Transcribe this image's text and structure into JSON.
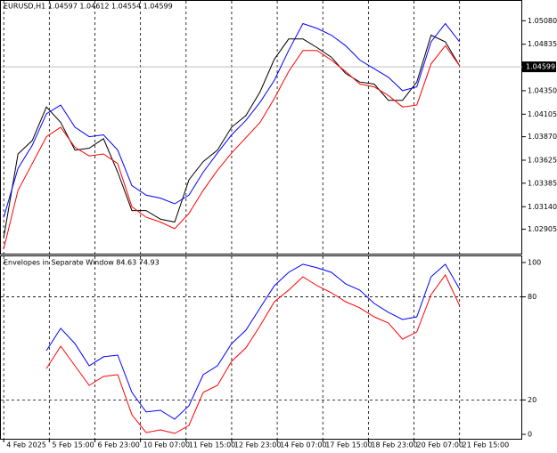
{
  "chart_data": [
    {
      "type": "line",
      "title": "EURUSD,H1  1.04597 1.04612 1.04554 1.04599",
      "x": [
        0,
        10,
        20,
        30,
        40,
        50,
        60,
        70,
        80,
        90,
        100,
        110,
        120,
        130,
        140,
        150,
        160,
        170,
        180,
        190,
        200,
        210,
        220,
        230,
        240,
        250,
        260,
        270,
        280,
        290,
        300,
        310,
        320
      ],
      "xlim": [
        -2,
        364
      ],
      "ylim": [
        1.02641,
        1.05287
      ],
      "yticks": [
        {
          "value": 1.0508,
          "label": "1.05080"
        },
        {
          "value": 1.04835,
          "label": "1.04835"
        },
        {
          "value": 1.0435,
          "label": "1.04350"
        },
        {
          "value": 1.04105,
          "label": "1.04105"
        },
        {
          "value": 1.0387,
          "label": "1.03870"
        },
        {
          "value": 1.03625,
          "label": "1.03625"
        },
        {
          "value": 1.03385,
          "label": "1.03385"
        },
        {
          "value": 1.0314,
          "label": "1.03140"
        },
        {
          "value": 1.02905,
          "label": "1.02905"
        }
      ],
      "price_tag": {
        "value": 1.04599,
        "label": "1.04599"
      },
      "grid": true,
      "series": [
        {
          "color": "#000000",
          "values": [
            1.0282,
            1.0369,
            1.0383,
            1.0418,
            1.0402,
            1.0373,
            1.0375,
            1.0385,
            1.035,
            1.031,
            1.031,
            1.0301,
            1.0298,
            1.0342,
            1.0361,
            1.0373,
            1.0397,
            1.0409,
            1.0434,
            1.0468,
            1.0489,
            1.0489,
            1.048,
            1.047,
            1.0453,
            1.0444,
            1.0442,
            1.0425,
            1.0425,
            1.0444,
            1.0493,
            1.0486,
            1.0461
          ]
        },
        {
          "color": "#0000ff",
          "values": [
            1.0303,
            1.0354,
            1.0378,
            1.0411,
            1.042,
            1.0397,
            1.0387,
            1.0389,
            1.0373,
            1.0336,
            1.0326,
            1.0323,
            1.0317,
            1.0326,
            1.035,
            1.037,
            1.0389,
            1.0404,
            1.0423,
            1.0446,
            1.0477,
            1.0505,
            1.05,
            1.0493,
            1.0482,
            1.0467,
            1.0458,
            1.0449,
            1.0435,
            1.0439,
            1.0486,
            1.0505,
            1.0486
          ]
        },
        {
          "color": "#ff0000",
          "values": [
            1.027,
            1.0331,
            1.0359,
            1.0387,
            1.0397,
            1.0376,
            1.0367,
            1.0369,
            1.0359,
            1.0314,
            1.0303,
            1.0298,
            1.0291,
            1.0307,
            1.0331,
            1.0352,
            1.037,
            1.0386,
            1.0402,
            1.0427,
            1.0455,
            1.0477,
            1.0477,
            1.0467,
            1.0455,
            1.0442,
            1.0439,
            1.043,
            1.0418,
            1.042,
            1.0463,
            1.0482,
            1.0461
          ]
        }
      ]
    },
    {
      "type": "line",
      "title": "Envelopes in Separate Window 84.63 74.93",
      "x": [
        0,
        10,
        20,
        30,
        40,
        50,
        60,
        70,
        80,
        90,
        100,
        110,
        120,
        130,
        140,
        150,
        160,
        170,
        180,
        190,
        200,
        210,
        220,
        230,
        240,
        250,
        260,
        270,
        280,
        290,
        300,
        310,
        320
      ],
      "xlim": [
        -2,
        364
      ],
      "xticks": [
        {
          "value": 0,
          "label": "4 Feb 2025"
        },
        {
          "value": 32,
          "label": "5 Feb 15:00"
        },
        {
          "value": 64,
          "label": "6 Feb 23:00"
        },
        {
          "value": 96,
          "label": "10 Feb 07:00"
        },
        {
          "value": 128,
          "label": "11 Feb 15:00"
        },
        {
          "value": 160,
          "label": "12 Feb 23:00"
        },
        {
          "value": 192,
          "label": "14 Feb 07:00"
        },
        {
          "value": 224,
          "label": "17 Feb 15:00"
        },
        {
          "value": 256,
          "label": "18 Feb 23:00"
        },
        {
          "value": 288,
          "label": "20 Feb 07:00"
        },
        {
          "value": 320,
          "label": "21 Feb 15:00"
        }
      ],
      "ylim": [
        -3.1,
        103.6
      ],
      "yticks": [
        0,
        20,
        80,
        100
      ],
      "levels": [
        20,
        80
      ],
      "series": [
        {
          "color": "#0000ff",
          "values": [
            null,
            null,
            null,
            48.7,
            61.7,
            52.8,
            39.9,
            45.1,
            46.1,
            24.4,
            13.0,
            14.0,
            8.8,
            16.6,
            34.7,
            39.9,
            52.8,
            60.6,
            73.6,
            86.5,
            94.3,
            99,
            96.9,
            94.3,
            87.6,
            83.9,
            76.2,
            71.0,
            66.8,
            68.4,
            91.7,
            99,
            84.6
          ]
        },
        {
          "color": "#ff0000",
          "values": [
            null,
            null,
            null,
            38.3,
            51.3,
            39.9,
            28.5,
            33.7,
            34.7,
            11.4,
            1.0,
            2.6,
            0.5,
            5.2,
            24.4,
            28.5,
            42.5,
            50.3,
            63.2,
            77.2,
            83.9,
            91.7,
            86.5,
            82.4,
            77.2,
            73.6,
            68.4,
            64.8,
            55.4,
            59.6,
            81.3,
            92.7,
            74.9
          ]
        }
      ]
    }
  ]
}
